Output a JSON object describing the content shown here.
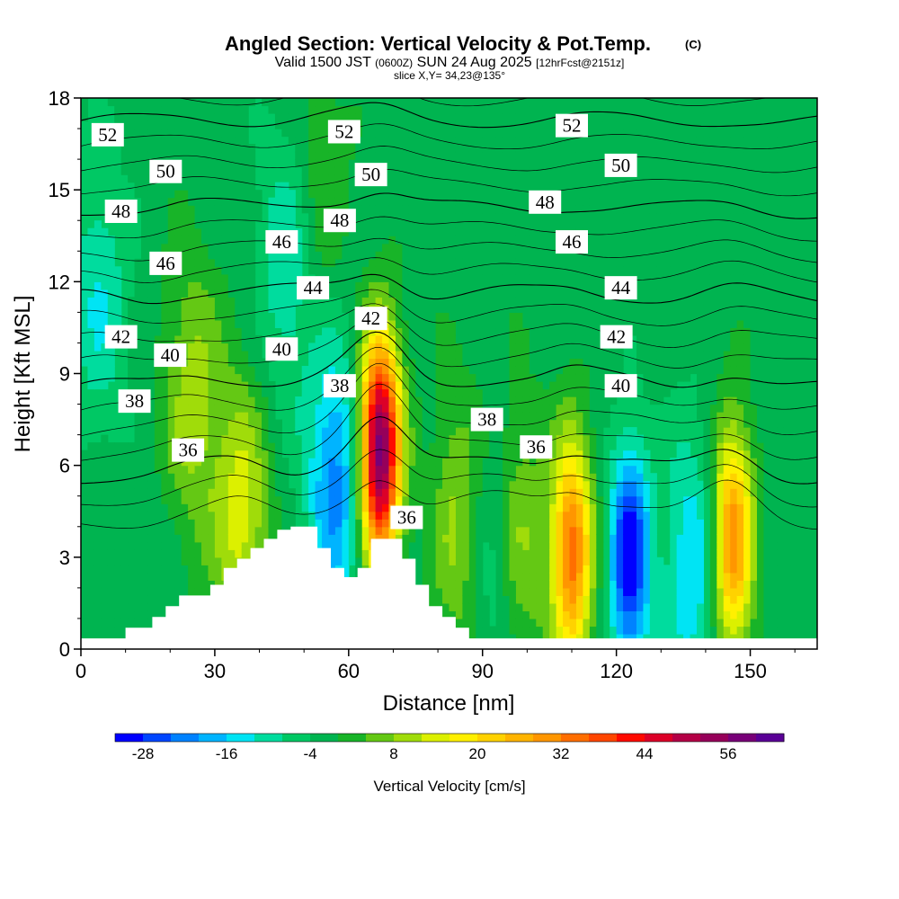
{
  "chart_data": {
    "type": "heatmap",
    "title": "Angled Section: Vertical Velocity & Pot.Temp.",
    "title_tag": "(C)",
    "subtitle_parts": [
      "Valid 1500 JST",
      "(0600Z)",
      "SUN 24 Aug 2025",
      "[12hrFcst@2151z]"
    ],
    "slice_label": "slice X,Y= 34,23@135°",
    "xlabel": "Distance [nm]",
    "ylabel": "Height [Kft MSL]",
    "xlim": [
      0,
      165
    ],
    "ylim": [
      0,
      18
    ],
    "x_ticks": [
      0,
      30,
      60,
      90,
      120,
      150
    ],
    "y_ticks": [
      0,
      3,
      6,
      9,
      12,
      15,
      18
    ],
    "colorbar": {
      "label": "Vertical Velocity [cm/s]",
      "ticks": [
        "-28",
        "-16",
        "-4",
        "8",
        "20",
        "32",
        "44",
        "56"
      ],
      "min": -32,
      "max": 64,
      "step": 4,
      "colors": [
        "#0000ff",
        "#0046ff",
        "#0082ff",
        "#00b4ff",
        "#00e4f4",
        "#00dc9e",
        "#00c864",
        "#00b450",
        "#18b428",
        "#64c814",
        "#a0dc0a",
        "#dcf000",
        "#fff000",
        "#ffd200",
        "#ffb400",
        "#ff9600",
        "#ff6e00",
        "#ff4600",
        "#ff0a00",
        "#dc0028",
        "#b40046",
        "#96005a",
        "#780078",
        "#5a0096"
      ]
    },
    "terrain_profile": [
      [
        0,
        0.35
      ],
      [
        10,
        0.35
      ],
      [
        10,
        0.7
      ],
      [
        16,
        0.7
      ],
      [
        16,
        1.05
      ],
      [
        19,
        1.05
      ],
      [
        19,
        1.4
      ],
      [
        22,
        1.4
      ],
      [
        22,
        1.75
      ],
      [
        29,
        1.75
      ],
      [
        29,
        2.1
      ],
      [
        32,
        2.1
      ],
      [
        32,
        2.65
      ],
      [
        35,
        2.65
      ],
      [
        35,
        2.95
      ],
      [
        38,
        2.95
      ],
      [
        38,
        3.3
      ],
      [
        41,
        3.3
      ],
      [
        41,
        3.6
      ],
      [
        44,
        3.6
      ],
      [
        44,
        3.9
      ],
      [
        47,
        3.9
      ],
      [
        47,
        4.0
      ],
      [
        53,
        4.0
      ],
      [
        53,
        3.3
      ],
      [
        56,
        3.3
      ],
      [
        56,
        2.65
      ],
      [
        59,
        2.65
      ],
      [
        59,
        2.35
      ],
      [
        62,
        2.35
      ],
      [
        62,
        2.65
      ],
      [
        65,
        2.65
      ],
      [
        65,
        3.6
      ],
      [
        72,
        3.6
      ],
      [
        72,
        2.95
      ],
      [
        75,
        2.95
      ],
      [
        75,
        2.1
      ],
      [
        78,
        2.1
      ],
      [
        78,
        1.4
      ],
      [
        81,
        1.4
      ],
      [
        81,
        1.05
      ],
      [
        84,
        1.05
      ],
      [
        84,
        0.7
      ],
      [
        87,
        0.7
      ],
      [
        87,
        0.35
      ],
      [
        165,
        0.35
      ]
    ],
    "updrafts": [
      {
        "x": 67,
        "z": 6.5,
        "w": 62
      },
      {
        "x": 110,
        "z": 3.2,
        "w": 36
      },
      {
        "x": 146,
        "z": 3.6,
        "w": 34
      },
      {
        "x": 97,
        "z": 3.5,
        "w": 16
      },
      {
        "x": 85,
        "z": 4.0,
        "w": 12
      },
      {
        "x": 36,
        "z": 4.3,
        "w": 16
      },
      {
        "x": 25,
        "z": 8.2,
        "w": 12
      },
      {
        "x": 54,
        "z": 15.0,
        "w": 6
      }
    ],
    "downdrafts": [
      {
        "x": 123,
        "z": 3.0,
        "w": -30
      },
      {
        "x": 57,
        "z": 5.5,
        "w": -20
      },
      {
        "x": 93,
        "z": 3.0,
        "w": -14
      },
      {
        "x": 137,
        "z": 2.6,
        "w": -14
      },
      {
        "x": 46,
        "z": 12.5,
        "w": -10
      },
      {
        "x": 4,
        "z": 11.5,
        "w": -10
      }
    ],
    "isentropes": {
      "levels": [
        36,
        38,
        40,
        42,
        44,
        46,
        48,
        50,
        52
      ],
      "labels": [
        {
          "text": "52",
          "x": 6,
          "z": 16.8
        },
        {
          "text": "52",
          "x": 59,
          "z": 16.9
        },
        {
          "text": "52",
          "x": 110,
          "z": 17.1
        },
        {
          "text": "50",
          "x": 19,
          "z": 15.6
        },
        {
          "text": "50",
          "x": 65,
          "z": 15.5
        },
        {
          "text": "50",
          "x": 121,
          "z": 15.8
        },
        {
          "text": "48",
          "x": 9,
          "z": 14.3
        },
        {
          "text": "48",
          "x": 58,
          "z": 14.0
        },
        {
          "text": "48",
          "x": 104,
          "z": 14.6
        },
        {
          "text": "46",
          "x": 19,
          "z": 12.6
        },
        {
          "text": "46",
          "x": 45,
          "z": 13.3
        },
        {
          "text": "46",
          "x": 110,
          "z": 13.3
        },
        {
          "text": "44",
          "x": 52,
          "z": 11.8
        },
        {
          "text": "44",
          "x": 121,
          "z": 11.8
        },
        {
          "text": "42",
          "x": 9,
          "z": 10.2
        },
        {
          "text": "42",
          "x": 65,
          "z": 10.8
        },
        {
          "text": "42",
          "x": 120,
          "z": 10.2
        },
        {
          "text": "40",
          "x": 20,
          "z": 9.6
        },
        {
          "text": "40",
          "x": 45,
          "z": 9.8
        },
        {
          "text": "40",
          "x": 121,
          "z": 8.6
        },
        {
          "text": "38",
          "x": 12,
          "z": 8.1
        },
        {
          "text": "38",
          "x": 58,
          "z": 8.6
        },
        {
          "text": "38",
          "x": 91,
          "z": 7.5
        },
        {
          "text": "36",
          "x": 24,
          "z": 6.5
        },
        {
          "text": "36",
          "x": 102,
          "z": 6.6
        },
        {
          "text": "36",
          "x": 73,
          "z": 4.3
        }
      ]
    }
  }
}
